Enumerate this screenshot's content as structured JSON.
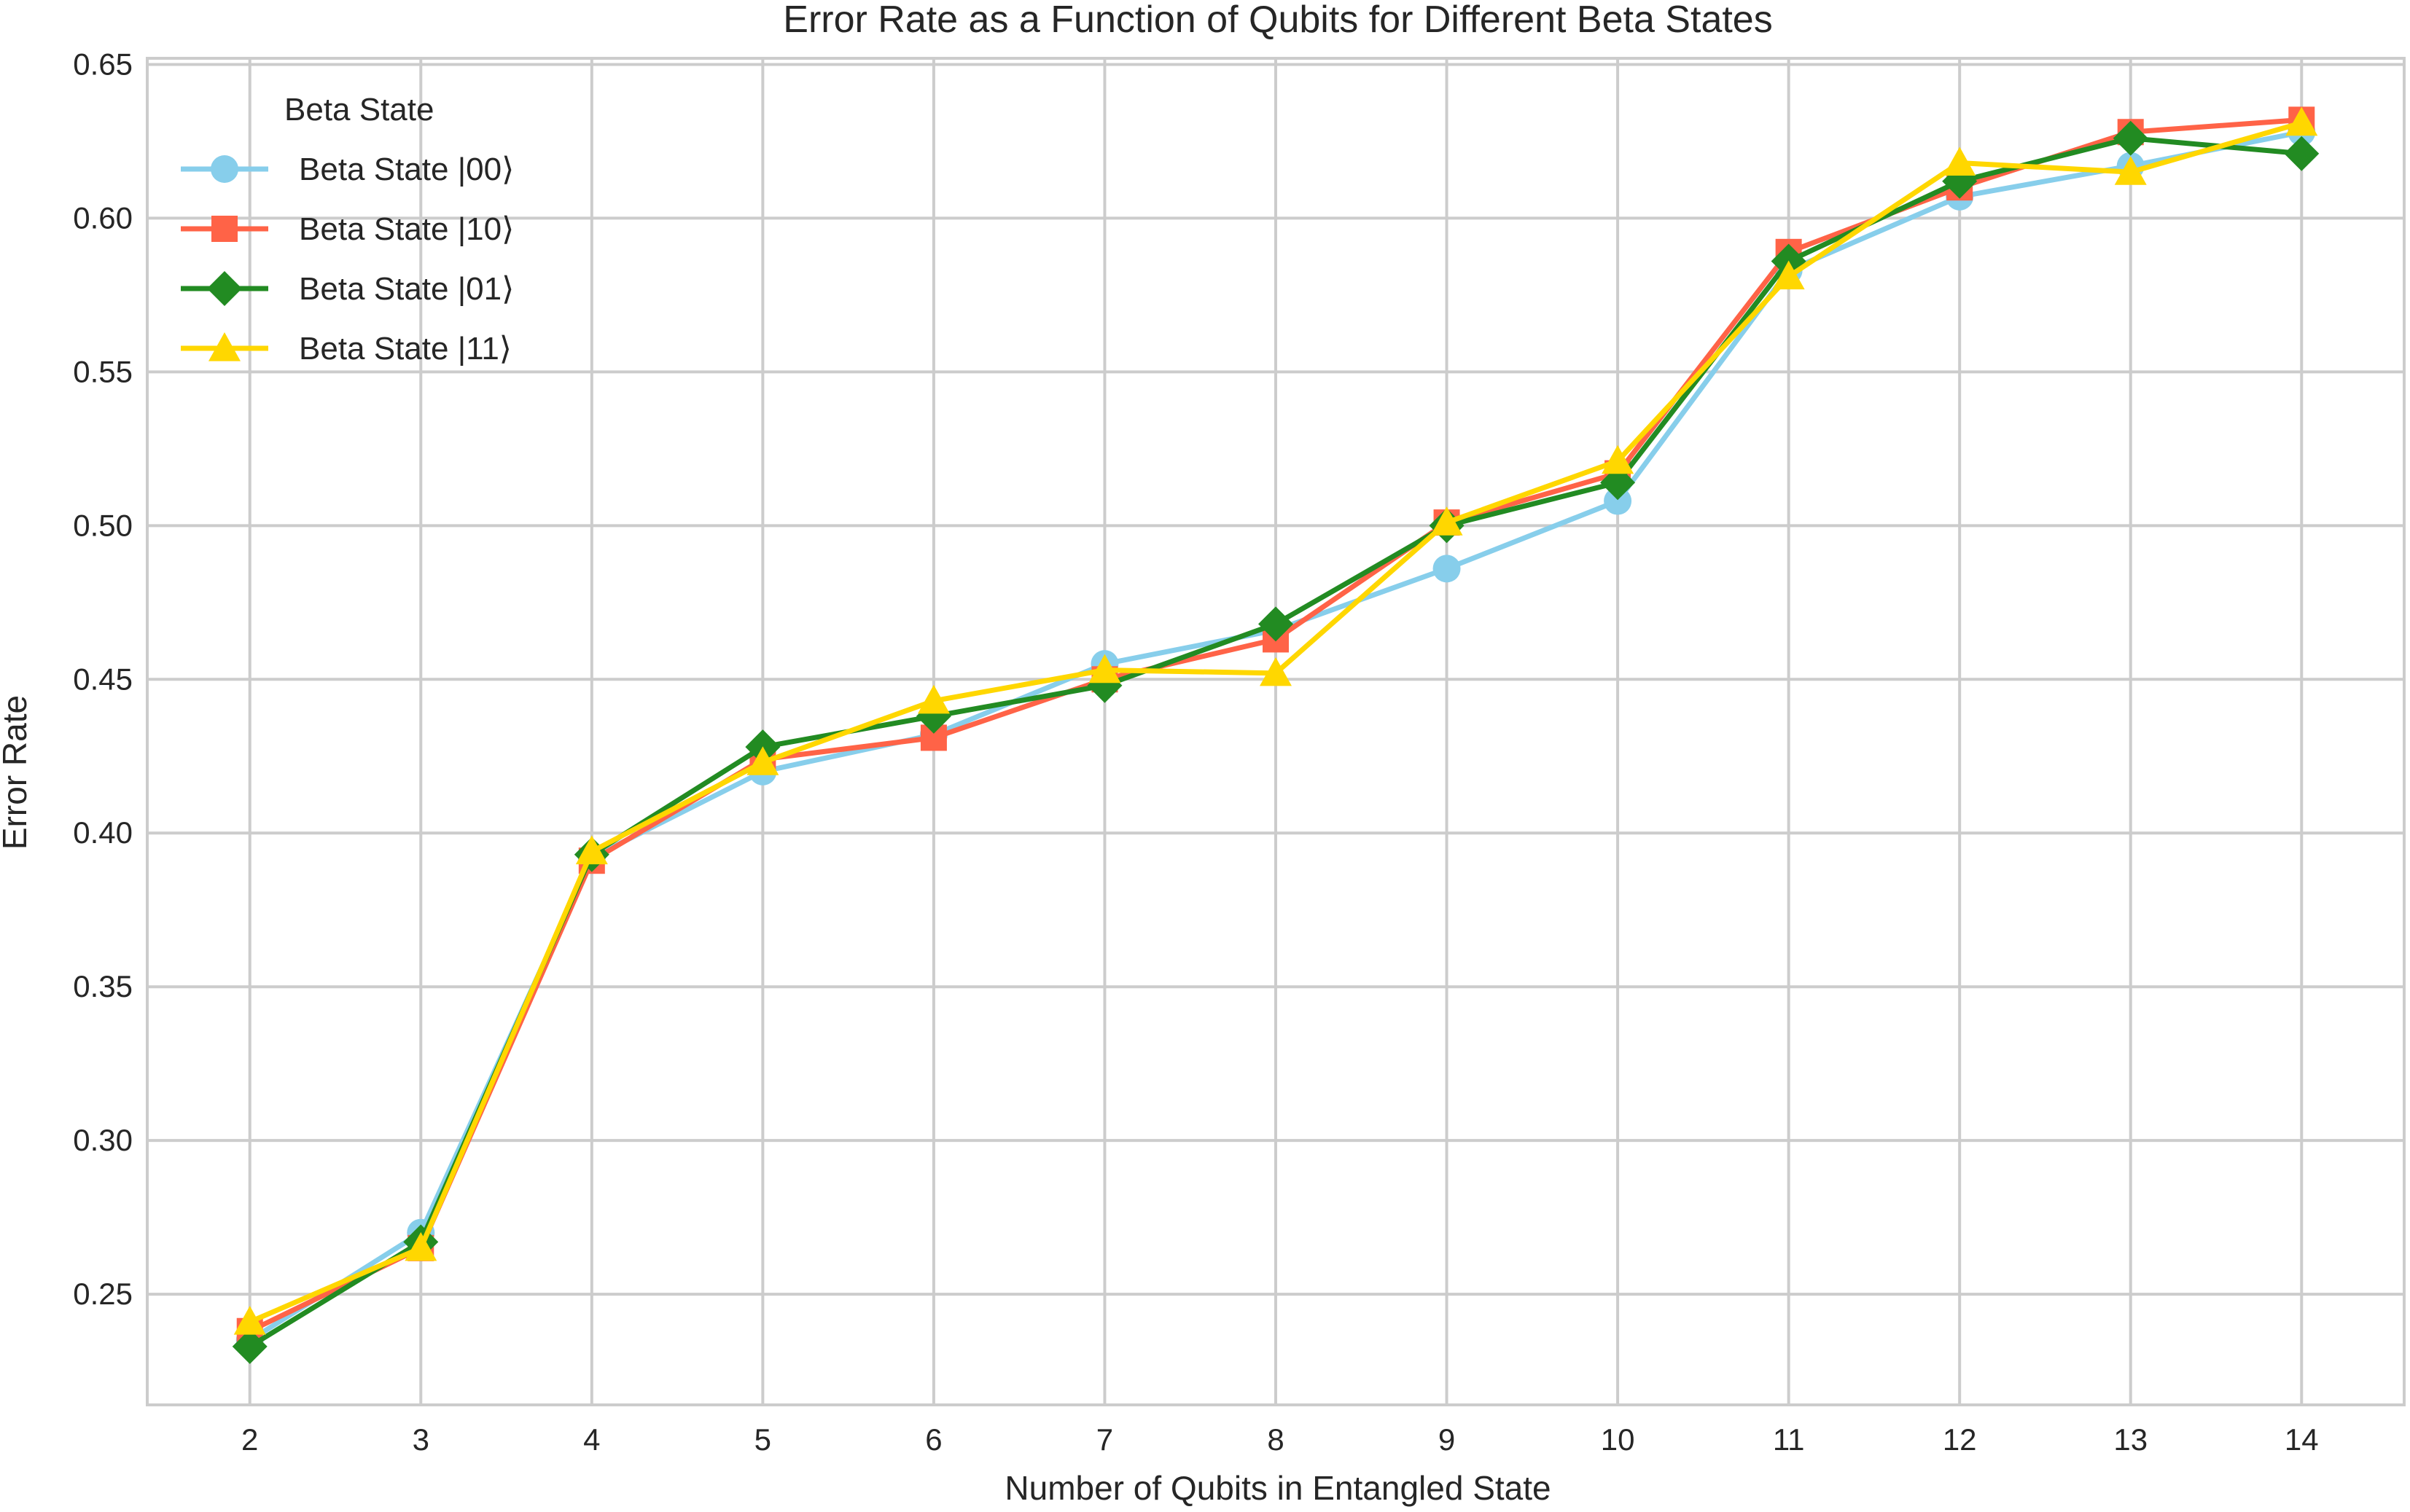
{
  "chart_data": {
    "type": "line",
    "title": "Error Rate as a Function of Qubits for Different Beta States",
    "xlabel": "Number of Qubits in Entangled State",
    "ylabel": "Error Rate",
    "x": [
      2,
      3,
      4,
      5,
      6,
      7,
      8,
      9,
      10,
      11,
      12,
      13,
      14
    ],
    "xlim": [
      1.4,
      14.6
    ],
    "ylim": [
      0.214,
      0.652
    ],
    "yticks": [
      0.25,
      0.3,
      0.35,
      0.4,
      0.45,
      0.5,
      0.55,
      0.6,
      0.65
    ],
    "ytick_labels": [
      "0.25",
      "0.30",
      "0.35",
      "0.40",
      "0.45",
      "0.50",
      "0.55",
      "0.60",
      "0.65"
    ],
    "xtick_labels": [
      "2",
      "3",
      "4",
      "5",
      "6",
      "7",
      "8",
      "9",
      "10",
      "11",
      "12",
      "13",
      "14"
    ],
    "grid": true,
    "legend": {
      "title": "Beta State",
      "placement": "top-left"
    },
    "series": [
      {
        "name": "Beta State |00⟩",
        "color": "#87ceeb",
        "marker": "circle",
        "values": [
          0.235,
          0.27,
          0.392,
          0.42,
          0.432,
          0.455,
          0.466,
          0.486,
          0.508,
          0.583,
          0.607,
          0.617,
          0.628
        ]
      },
      {
        "name": "Beta State |10⟩",
        "color": "#ff6347",
        "marker": "square",
        "values": [
          0.238,
          0.265,
          0.391,
          0.424,
          0.431,
          0.45,
          0.463,
          0.501,
          0.517,
          0.589,
          0.61,
          0.628,
          0.632
        ]
      },
      {
        "name": "Beta State |01⟩",
        "color": "#228b22",
        "marker": "diamond",
        "values": [
          0.233,
          0.267,
          0.393,
          0.428,
          0.438,
          0.448,
          0.468,
          0.5,
          0.514,
          0.586,
          0.612,
          0.626,
          0.621
        ]
      },
      {
        "name": "Beta State |11⟩",
        "color": "#ffd700",
        "marker": "triangle",
        "values": [
          0.241,
          0.265,
          0.394,
          0.423,
          0.443,
          0.453,
          0.452,
          0.501,
          0.521,
          0.581,
          0.618,
          0.615,
          0.631
        ]
      }
    ]
  }
}
